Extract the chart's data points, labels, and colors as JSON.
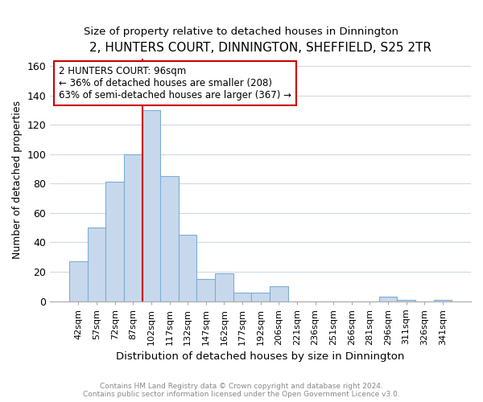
{
  "title": "2, HUNTERS COURT, DINNINGTON, SHEFFIELD, S25 2TR",
  "subtitle": "Size of property relative to detached houses in Dinnington",
  "xlabel": "Distribution of detached houses by size in Dinnington",
  "ylabel": "Number of detached properties",
  "categories": [
    "42sqm",
    "57sqm",
    "72sqm",
    "87sqm",
    "102sqm",
    "117sqm",
    "132sqm",
    "147sqm",
    "162sqm",
    "177sqm",
    "192sqm",
    "206sqm",
    "221sqm",
    "236sqm",
    "251sqm",
    "266sqm",
    "281sqm",
    "296sqm",
    "311sqm",
    "326sqm",
    "341sqm"
  ],
  "values": [
    27,
    50,
    81,
    100,
    130,
    85,
    45,
    15,
    19,
    6,
    6,
    10,
    0,
    0,
    0,
    0,
    0,
    3,
    1,
    0,
    1
  ],
  "bar_color": "#c8d8ec",
  "bar_edge_color": "#7aafd4",
  "annotation_label": "2 HUNTERS COURT: 96sqm",
  "annotation_line1": "← 36% of detached houses are smaller (208)",
  "annotation_line2": "63% of semi-detached houses are larger (367) →",
  "annotation_box_color": "#ffffff",
  "annotation_box_edge": "#cc0000",
  "vline_color": "#cc0000",
  "ylim": [
    0,
    165
  ],
  "yticks": [
    0,
    20,
    40,
    60,
    80,
    100,
    120,
    140,
    160
  ],
  "footer1": "Contains HM Land Registry data © Crown copyright and database right 2024.",
  "footer2": "Contains public sector information licensed under the Open Government Licence v3.0.",
  "background_color": "#ffffff",
  "plot_bg_color": "#ffffff",
  "grid_color": "#d0d8e8"
}
